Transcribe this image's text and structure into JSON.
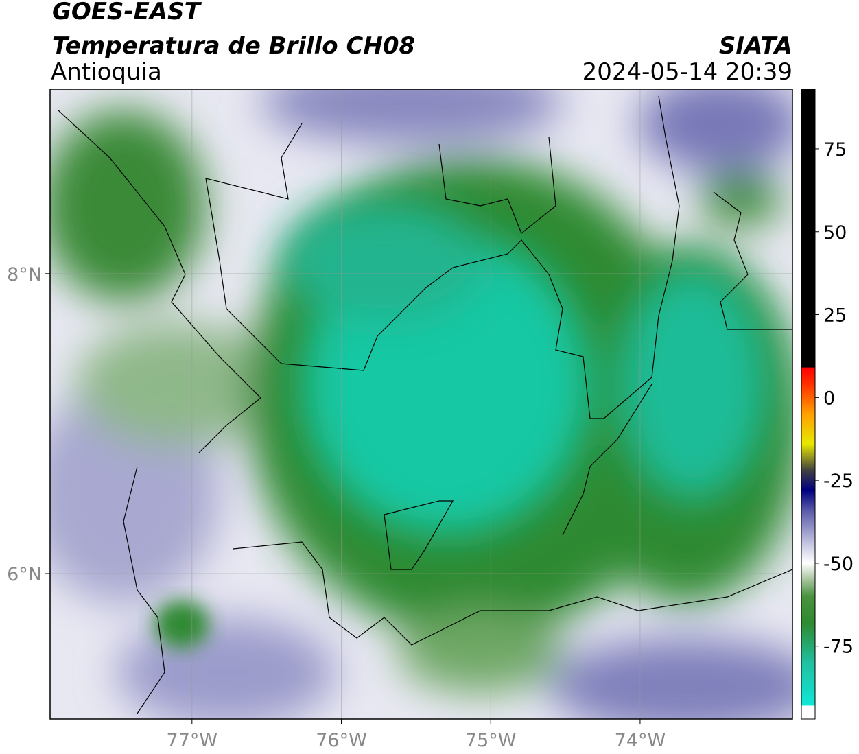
{
  "header": {
    "title": "GOES-EAST",
    "subtitle": "Temperatura de Brillo CH08",
    "region": "Antioquia",
    "source": "SIATA",
    "datetime": "2024-05-14 20:39"
  },
  "map": {
    "lonlim": [
      -77.95,
      -72.98
    ],
    "latlim": [
      5.03,
      9.23
    ],
    "lonticks": [
      {
        "value": -77,
        "label": "77°W"
      },
      {
        "value": -76,
        "label": "76°W"
      },
      {
        "value": -75,
        "label": "75°W"
      },
      {
        "value": -74,
        "label": "74°W"
      }
    ],
    "latticks": [
      {
        "value": 8,
        "label": "8°N"
      },
      {
        "value": 6,
        "label": "6°N"
      }
    ]
  },
  "colorbar": {
    "lim": [
      -97,
      93
    ],
    "ticks": [
      75,
      50,
      25,
      0,
      -25,
      -50,
      -75
    ],
    "colors": [
      {
        "value": -97,
        "color": "#ffffff"
      },
      {
        "value": -93,
        "color": "#ffffff"
      },
      {
        "value": -92.9,
        "color": "#10e8d8"
      },
      {
        "value": -80,
        "color": "#20c0a0"
      },
      {
        "value": -68,
        "color": "#2e8a30"
      },
      {
        "value": -60,
        "color": "#4a9240"
      },
      {
        "value": -54,
        "color": "#b8ceb0"
      },
      {
        "value": -50,
        "color": "#ffffff"
      },
      {
        "value": -44,
        "color": "#c4c4e2"
      },
      {
        "value": -34,
        "color": "#5858a8"
      },
      {
        "value": -28,
        "color": "#000080"
      },
      {
        "value": -22,
        "color": "#404040"
      },
      {
        "value": -14,
        "color": "#e8e800"
      },
      {
        "value": -5,
        "color": "#ffa000"
      },
      {
        "value": 4,
        "color": "#ff3000"
      },
      {
        "value": 9,
        "color": "#ff0000"
      },
      {
        "value": 9.1,
        "color": "#000000"
      },
      {
        "value": 93,
        "color": "#000000"
      }
    ]
  }
}
